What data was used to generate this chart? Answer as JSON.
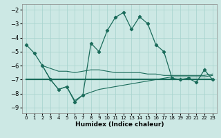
{
  "xlabel": "Humidex (Indice chaleur)",
  "bg_color": "#cce8e4",
  "line_color": "#1a6b5a",
  "grid_color": "#a8d4cf",
  "xlim": [
    -0.5,
    23.5
  ],
  "ylim": [
    -9.4,
    -1.6
  ],
  "yticks": [
    -9,
    -8,
    -7,
    -6,
    -5,
    -4,
    -3,
    -2
  ],
  "xticks": [
    0,
    1,
    2,
    3,
    4,
    5,
    6,
    7,
    8,
    9,
    10,
    11,
    12,
    13,
    14,
    15,
    16,
    17,
    18,
    19,
    20,
    21,
    22,
    23
  ],
  "main_x": [
    0,
    1,
    2,
    3,
    4,
    5,
    6,
    7,
    8,
    9,
    10,
    11,
    12,
    13,
    14,
    15,
    16,
    17,
    18,
    19,
    20,
    21,
    22,
    23
  ],
  "main_y": [
    -4.5,
    -5.1,
    -6.0,
    -7.0,
    -7.7,
    -7.5,
    -8.6,
    -8.1,
    -4.4,
    -5.0,
    -3.5,
    -2.55,
    -2.2,
    -3.4,
    -2.5,
    -3.0,
    -4.5,
    -5.0,
    -6.9,
    -7.0,
    -6.9,
    -7.2,
    -6.3,
    -7.0
  ],
  "line_upper_x": [
    2,
    3,
    4,
    5,
    6,
    7,
    8,
    9,
    10,
    11,
    12,
    13,
    14,
    15,
    16,
    17,
    18,
    19,
    20,
    21,
    22,
    23
  ],
  "line_upper_y": [
    -6.0,
    -6.2,
    -6.4,
    -6.4,
    -6.5,
    -6.4,
    -6.3,
    -6.3,
    -6.4,
    -6.5,
    -6.5,
    -6.5,
    -6.5,
    -6.6,
    -6.6,
    -6.7,
    -6.7,
    -6.7,
    -6.7,
    -6.7,
    -6.7,
    -6.6
  ],
  "line_thick_x": [
    0,
    1,
    2,
    3,
    23
  ],
  "line_thick_y": [
    -7.0,
    -7.0,
    -7.0,
    -7.0,
    -7.0
  ],
  "line_lower_x": [
    2,
    3,
    4,
    5,
    6,
    7,
    8,
    9,
    10,
    11,
    12,
    13,
    14,
    15,
    16,
    17,
    18,
    19,
    20,
    21,
    22,
    23
  ],
  "line_lower_y": [
    -6.0,
    -7.0,
    -7.7,
    -7.5,
    -8.5,
    -8.1,
    -7.9,
    -7.7,
    -7.6,
    -7.5,
    -7.4,
    -7.3,
    -7.2,
    -7.1,
    -7.0,
    -6.9,
    -6.8,
    -6.8,
    -6.8,
    -6.8,
    -6.8,
    -6.7
  ]
}
